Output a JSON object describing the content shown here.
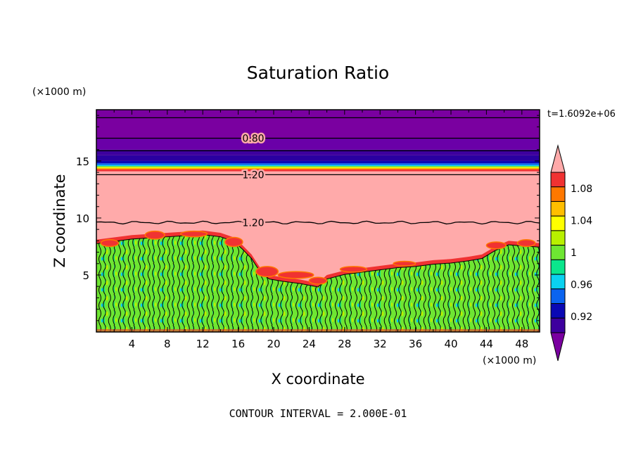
{
  "chart_data": {
    "type": "heatmap",
    "title": "Saturation Ratio",
    "xlabel": "X coordinate",
    "ylabel": "Z coordinate",
    "x_units": "(×1000 m)",
    "y_units": "(×1000 m)",
    "time_label": "t=1.6092e+06",
    "footer": "CONTOUR INTERVAL = 2.000E-01",
    "xlim": [
      0,
      50
    ],
    "ylim": [
      0,
      19.5
    ],
    "x_ticks": [
      4,
      8,
      12,
      16,
      20,
      24,
      28,
      32,
      36,
      40,
      44,
      48
    ],
    "y_ticks": [
      5,
      10,
      15
    ],
    "colorbar": {
      "levels": [
        0.92,
        0.96,
        1,
        1.04,
        1.08
      ],
      "level_labels": [
        "0.92",
        "0.96",
        "1",
        "1.04",
        "1.08"
      ],
      "colors": [
        "#7a00a0",
        "#3d009e",
        "#0a08b4",
        "#0a64f0",
        "#0ad2f0",
        "#0ae68c",
        "#6ee632",
        "#b8f000",
        "#ffff00",
        "#ffbe00",
        "#ff7800",
        "#f03232",
        "#ffaaaa"
      ],
      "min_color": "#7a00a0",
      "max_color": "#ffaaaa",
      "extend": "both"
    },
    "contour_labels": [
      {
        "text": "0.80",
        "x": 17.7,
        "z": 17.0
      },
      {
        "text": "1.20",
        "x": 17.7,
        "z": 13.8
      },
      {
        "text": "1.20",
        "x": 17.7,
        "z": 9.6
      }
    ],
    "layers": [
      {
        "z_from": 17.0,
        "z_to": 19.5,
        "color": "#7a00a0"
      },
      {
        "z_from": 16.0,
        "z_to": 17.0,
        "color": "#6a00a8"
      },
      {
        "z_from": 15.5,
        "z_to": 16.0,
        "color": "#3d009e"
      },
      {
        "z_from": 15.0,
        "z_to": 15.5,
        "color": "#2a00a0"
      },
      {
        "z_from": 14.8,
        "z_to": 15.0,
        "color": "#0a08b4"
      },
      {
        "z_from": 14.65,
        "z_to": 14.8,
        "color": "#0a64f0"
      },
      {
        "z_from": 14.55,
        "z_to": 14.65,
        "color": "#0ad2f0"
      },
      {
        "z_from": 14.45,
        "z_to": 14.55,
        "color": "#6ee632"
      },
      {
        "z_from": 14.35,
        "z_to": 14.45,
        "color": "#ffff00"
      },
      {
        "z_from": 14.25,
        "z_to": 14.35,
        "color": "#ff7800"
      },
      {
        "z_from": 14.1,
        "z_to": 14.25,
        "color": "#f03232"
      }
    ],
    "background_color": "#ffaaaa",
    "contour_lines_z": [
      18.8,
      17.0,
      15.9,
      13.8
    ],
    "lower_contour_z": 9.6,
    "cloud_top": [
      {
        "x": 0,
        "z": 8.1
      },
      {
        "x": 2,
        "z": 8.3
      },
      {
        "x": 4,
        "z": 8.5
      },
      {
        "x": 6,
        "z": 8.6
      },
      {
        "x": 8,
        "z": 8.7
      },
      {
        "x": 10,
        "z": 8.8
      },
      {
        "x": 12,
        "z": 8.9
      },
      {
        "x": 14,
        "z": 8.7
      },
      {
        "x": 15.5,
        "z": 8.3
      },
      {
        "x": 16.5,
        "z": 7.6
      },
      {
        "x": 17.5,
        "z": 6.8
      },
      {
        "x": 18.5,
        "z": 5.6
      },
      {
        "x": 19.5,
        "z": 5.0
      },
      {
        "x": 21,
        "z": 4.8
      },
      {
        "x": 23,
        "z": 4.6
      },
      {
        "x": 25,
        "z": 4.3
      },
      {
        "x": 26,
        "z": 5.0
      },
      {
        "x": 28,
        "z": 5.4
      },
      {
        "x": 30,
        "z": 5.6
      },
      {
        "x": 32,
        "z": 5.8
      },
      {
        "x": 34,
        "z": 6.0
      },
      {
        "x": 36,
        "z": 6.1
      },
      {
        "x": 38,
        "z": 6.3
      },
      {
        "x": 40,
        "z": 6.4
      },
      {
        "x": 42,
        "z": 6.6
      },
      {
        "x": 43.5,
        "z": 6.8
      },
      {
        "x": 45,
        "z": 7.5
      },
      {
        "x": 46.5,
        "z": 8.0
      },
      {
        "x": 48,
        "z": 7.9
      },
      {
        "x": 50,
        "z": 7.8
      }
    ],
    "red_patches": [
      {
        "x": 0.5,
        "z": 7.8,
        "w": 2.0,
        "h": 0.6
      },
      {
        "x": 5.5,
        "z": 8.5,
        "w": 2.2,
        "h": 0.7
      },
      {
        "x": 9.5,
        "z": 8.6,
        "w": 3.0,
        "h": 0.5
      },
      {
        "x": 14.5,
        "z": 7.9,
        "w": 2.0,
        "h": 0.8
      },
      {
        "x": 18.0,
        "z": 5.3,
        "w": 2.5,
        "h": 0.9
      },
      {
        "x": 20.5,
        "z": 5.0,
        "w": 4.0,
        "h": 0.6
      },
      {
        "x": 24.0,
        "z": 4.5,
        "w": 2.0,
        "h": 0.6
      },
      {
        "x": 27.5,
        "z": 5.5,
        "w": 3.0,
        "h": 0.5
      },
      {
        "x": 33.5,
        "z": 6.0,
        "w": 2.5,
        "h": 0.4
      },
      {
        "x": 44.0,
        "z": 7.6,
        "w": 2.2,
        "h": 0.6
      },
      {
        "x": 47.5,
        "z": 7.8,
        "w": 2.0,
        "h": 0.6
      }
    ]
  }
}
